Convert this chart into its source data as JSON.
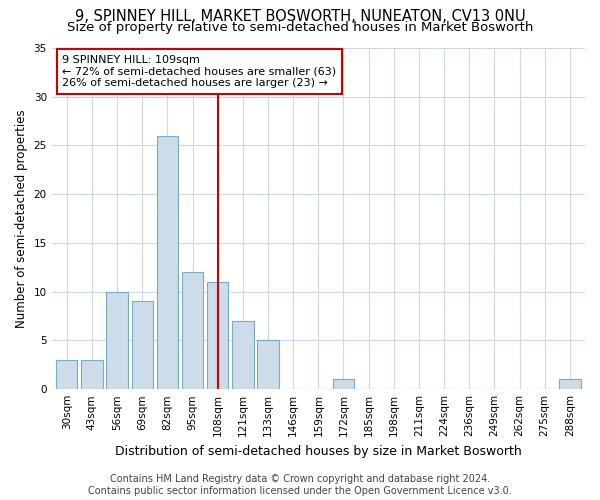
{
  "title": "9, SPINNEY HILL, MARKET BOSWORTH, NUNEATON, CV13 0NU",
  "subtitle": "Size of property relative to semi-detached houses in Market Bosworth",
  "xlabel": "Distribution of semi-detached houses by size in Market Bosworth",
  "ylabel": "Number of semi-detached properties",
  "categories": [
    "30sqm",
    "43sqm",
    "56sqm",
    "69sqm",
    "82sqm",
    "95sqm",
    "108sqm",
    "121sqm",
    "133sqm",
    "146sqm",
    "159sqm",
    "172sqm",
    "185sqm",
    "198sqm",
    "211sqm",
    "224sqm",
    "236sqm",
    "249sqm",
    "262sqm",
    "275sqm",
    "288sqm"
  ],
  "values": [
    3,
    3,
    10,
    9,
    26,
    12,
    11,
    7,
    5,
    0,
    0,
    1,
    0,
    0,
    0,
    0,
    0,
    0,
    0,
    0,
    1
  ],
  "bar_color": "#ccdce8",
  "bar_edge_color": "#7aaac8",
  "vline_x": 6,
  "vline_color": "#cc0000",
  "annotation_text": "9 SPINNEY HILL: 109sqm\n← 72% of semi-detached houses are smaller (63)\n26% of semi-detached houses are larger (23) →",
  "annotation_box_color": "white",
  "annotation_box_edge_color": "#cc0000",
  "ylim": [
    0,
    35
  ],
  "yticks": [
    0,
    5,
    10,
    15,
    20,
    25,
    30,
    35
  ],
  "fig_bg_color": "#ffffff",
  "plot_bg_color": "#ffffff",
  "grid_color": "#ccd8e8",
  "footer": "Contains HM Land Registry data © Crown copyright and database right 2024.\nContains public sector information licensed under the Open Government Licence v3.0.",
  "title_fontsize": 10.5,
  "subtitle_fontsize": 9.5,
  "xlabel_fontsize": 9,
  "ylabel_fontsize": 8.5,
  "tick_fontsize": 7.5,
  "annotation_fontsize": 8,
  "footer_fontsize": 7
}
